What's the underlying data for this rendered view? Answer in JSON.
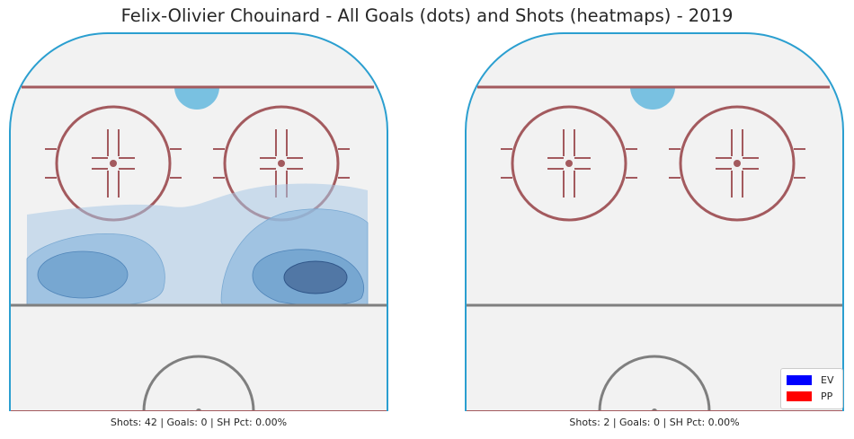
{
  "title": "Felix-Olivier Chouinard - All Goals (dots) and Shots (heatmaps) - 2019",
  "colors": {
    "board": "#2b9fd0",
    "goal_line": "#a35a5e",
    "circle": "#a35a5e",
    "blue_line": "#7f7f7f",
    "ice": "#f2f2f2",
    "goal_crease": "#79c1e1",
    "heat": [
      "#cfe0ef",
      "#a8cbe4",
      "#7fadd4",
      "#5f8ab8"
    ],
    "ev": "#0000ff",
    "pp": "#ff0000"
  },
  "chart_data": [
    {
      "type": "heatmap",
      "panel": "left",
      "goals": [],
      "stats": {
        "shots": 42,
        "goals": 0,
        "sh_pct": "0.00%"
      },
      "caption": "Shots: 42 | Goals: 0 | SH Pct: 0.00%"
    },
    {
      "type": "heatmap",
      "panel": "right",
      "goals": [],
      "stats": {
        "shots": 2,
        "goals": 0,
        "sh_pct": "0.00%"
      },
      "caption": "Shots: 2 | Goals: 0 | SH Pct: 0.00%"
    }
  ],
  "legend": {
    "placement": "bottom-right",
    "entries": [
      {
        "label": "EV",
        "color": "#0000ff"
      },
      {
        "label": "PP",
        "color": "#ff0000"
      }
    ]
  }
}
